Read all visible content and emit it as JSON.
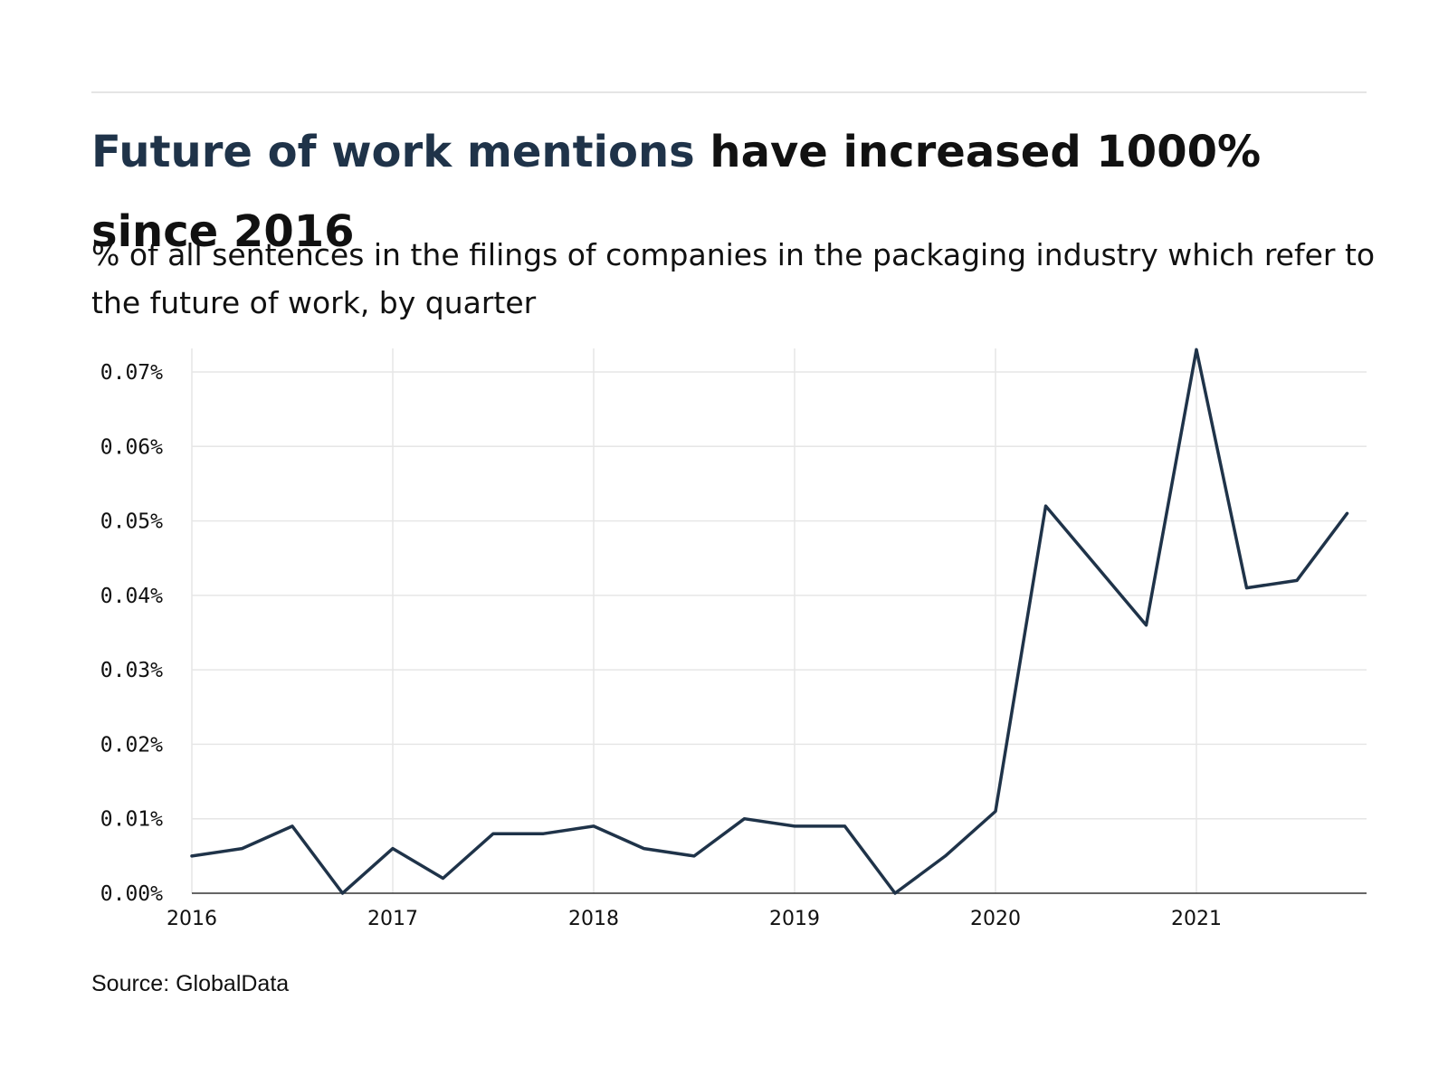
{
  "header": {
    "title_highlight": "Future of work mentions",
    "title_rest": " have increased 1000% since 2016",
    "subtitle": "% of all sentences in the filings of companies in the packaging industry which refer to the future of work, by quarter"
  },
  "footer": {
    "source": "Source: GlobalData"
  },
  "colors": {
    "line": "#1f3349",
    "grid": "#e6e6e6",
    "axis": "#333333",
    "highlight": "#1f3349"
  },
  "chart_data": {
    "type": "line",
    "title": "",
    "xlabel": "",
    "ylabel": "",
    "xlim": [
      2016,
      2021.75
    ],
    "ylim": [
      0,
      0.073
    ],
    "x_ticks": [
      {
        "value": 2016,
        "label": "2016"
      },
      {
        "value": 2017,
        "label": "2017"
      },
      {
        "value": 2018,
        "label": "2018"
      },
      {
        "value": 2019,
        "label": "2019"
      },
      {
        "value": 2020,
        "label": "2020"
      },
      {
        "value": 2021,
        "label": "2021"
      }
    ],
    "y_ticks": [
      {
        "value": 0.0,
        "label": "0.00%"
      },
      {
        "value": 0.01,
        "label": "0.01%"
      },
      {
        "value": 0.02,
        "label": "0.02%"
      },
      {
        "value": 0.03,
        "label": "0.03%"
      },
      {
        "value": 0.04,
        "label": "0.04%"
      },
      {
        "value": 0.05,
        "label": "0.05%"
      },
      {
        "value": 0.06,
        "label": "0.06%"
      },
      {
        "value": 0.07,
        "label": "0.07%"
      }
    ],
    "grid": true,
    "legend": "none",
    "series": [
      {
        "x": [
          2016.0,
          2016.25,
          2016.5,
          2016.75,
          2017.0,
          2017.25,
          2017.5,
          2017.75,
          2018.0,
          2018.25,
          2018.5,
          2018.75,
          2019.0,
          2019.25,
          2019.5,
          2019.75,
          2020.0,
          2020.25,
          2020.5,
          2020.75,
          2021.0,
          2021.25,
          2021.5,
          2021.75
        ],
        "values": [
          0.005,
          0.006,
          0.009,
          0.0,
          0.006,
          0.002,
          0.008,
          0.008,
          0.009,
          0.006,
          0.005,
          0.01,
          0.009,
          0.009,
          0.0,
          0.005,
          0.011,
          0.052,
          0.044,
          0.036,
          0.073,
          0.041,
          0.042,
          0.051
        ]
      }
    ]
  }
}
